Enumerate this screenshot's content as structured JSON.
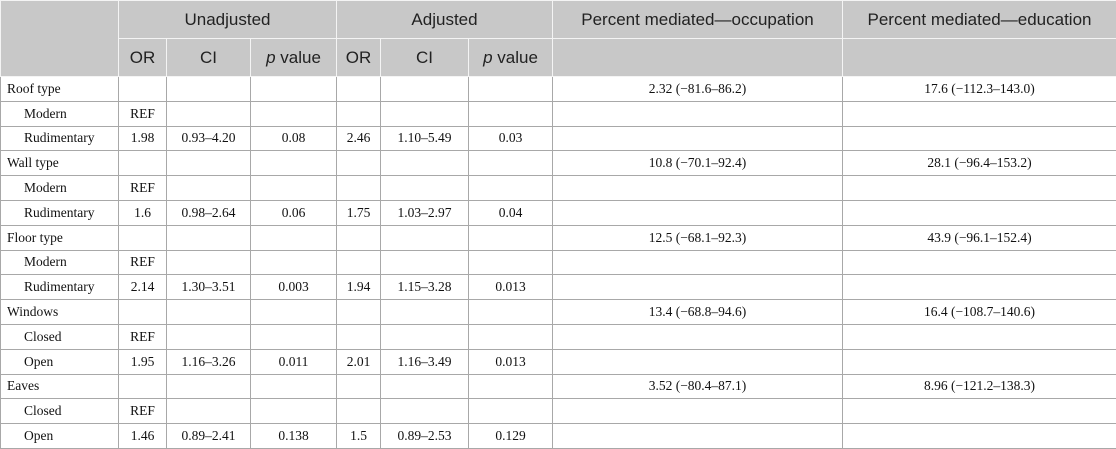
{
  "header": {
    "group_columns": [
      "Unadjusted",
      "Adjusted"
    ],
    "sub_columns": [
      {
        "text": "OR"
      },
      {
        "text": "CI"
      },
      {
        "em": "p",
        "text": "value"
      },
      {
        "text": "OR"
      },
      {
        "text": "CI"
      },
      {
        "em": "p",
        "text": "value"
      }
    ],
    "mediated": [
      "Percent mediated—occupation",
      "Percent mediated—education"
    ]
  },
  "groups": [
    {
      "label": "Roof type",
      "mediated": [
        "2.32 (−81.6–86.2)",
        "17.6 (−112.3–143.0)"
      ],
      "levels": [
        {
          "label": "Modern",
          "cells": [
            "REF",
            null,
            null,
            null,
            null,
            null
          ]
        },
        {
          "label": "Rudimentary",
          "cells": [
            "1.98",
            "0.93–4.20",
            "0.08",
            "2.46",
            "1.10–5.49",
            "0.03"
          ]
        }
      ]
    },
    {
      "label": "Wall type",
      "mediated": [
        "10.8 (−70.1–92.4)",
        "28.1 (−96.4–153.2)"
      ],
      "levels": [
        {
          "label": "Modern",
          "cells": [
            "REF",
            null,
            null,
            null,
            null,
            null
          ]
        },
        {
          "label": "Rudimentary",
          "cells": [
            "1.6",
            "0.98–2.64",
            "0.06",
            "1.75",
            "1.03–2.97",
            "0.04"
          ]
        }
      ]
    },
    {
      "label": "Floor type",
      "mediated": [
        "12.5 (−68.1–92.3)",
        "43.9 (−96.1–152.4)"
      ],
      "levels": [
        {
          "label": "Modern",
          "cells": [
            "REF",
            null,
            null,
            null,
            null,
            null
          ]
        },
        {
          "label": "Rudimentary",
          "cells": [
            "2.14",
            "1.30–3.51",
            "0.003",
            "1.94",
            "1.15–3.28",
            "0.013"
          ]
        }
      ]
    },
    {
      "label": "Windows",
      "mediated": [
        "13.4 (−68.8–94.6)",
        "16.4 (−108.7–140.6)"
      ],
      "levels": [
        {
          "label": "Closed",
          "cells": [
            "REF",
            null,
            null,
            null,
            null,
            null
          ]
        },
        {
          "label": "Open",
          "cells": [
            "1.95",
            "1.16–3.26",
            "0.011",
            "2.01",
            "1.16–3.49",
            "0.013"
          ]
        }
      ]
    },
    {
      "label": "Eaves",
      "mediated": [
        "3.52 (−80.4–87.1)",
        "8.96 (−121.2–138.3)"
      ],
      "levels": [
        {
          "label": "Closed",
          "cells": [
            "REF",
            null,
            null,
            null,
            null,
            null
          ]
        },
        {
          "label": "Open",
          "cells": [
            "1.46",
            "0.89–2.41",
            "0.138",
            "1.5",
            "0.89–2.53",
            "0.129"
          ]
        }
      ]
    }
  ]
}
